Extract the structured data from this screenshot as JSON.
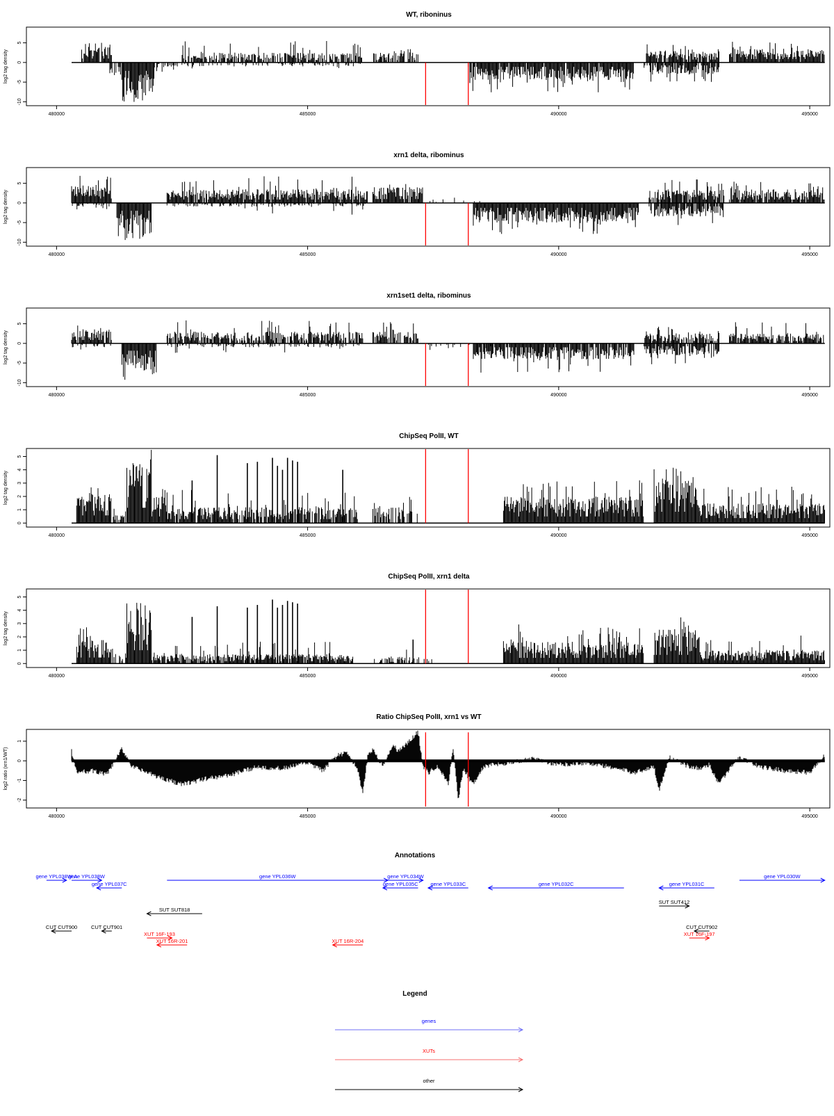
{
  "colors": {
    "gene": "#0000ff",
    "xut": "#ff0000",
    "other": "#000000",
    "marker": "#ff0000",
    "bars": "#000000",
    "frame": "#000000",
    "legend_gene_line": "#6f6ff5",
    "legend_xut_line": "#f56f6f"
  },
  "chart_data": [
    {
      "type": "bar",
      "title": "WT, riboninus",
      "ylabel": "log2 tag density",
      "xlim": [
        479400,
        495400
      ],
      "ylim": [
        -11,
        9
      ],
      "xticks": [
        480000,
        485000,
        490000,
        495000
      ],
      "yticks": [
        -10,
        -5,
        0,
        5
      ],
      "markers": [
        487350,
        488200
      ],
      "series_profile": [
        {
          "from": 480500,
          "to": 481100,
          "side": "pos",
          "level": 4.0,
          "peak": 5.0,
          "density": 0.9
        },
        {
          "from": 481000,
          "to": 481300,
          "side": "neg",
          "level": -3.0,
          "peak": -4.0,
          "density": 0.4
        },
        {
          "from": 481300,
          "to": 481950,
          "side": "neg",
          "level": -8.5,
          "peak": -10.5,
          "density": 1.0
        },
        {
          "from": 481950,
          "to": 482500,
          "side": "neg",
          "level": -1.5,
          "peak": -2.5,
          "density": 0.5
        },
        {
          "from": 482500,
          "to": 486100,
          "side": "pos",
          "level": 2.5,
          "peak": 5.5,
          "density": 0.7
        },
        {
          "from": 482500,
          "to": 486100,
          "side": "neg",
          "level": -1.0,
          "peak": -2.5,
          "density": 0.3
        },
        {
          "from": 486300,
          "to": 487200,
          "side": "pos",
          "level": 2.5,
          "peak": 3.5,
          "density": 0.7
        },
        {
          "from": 488200,
          "to": 491500,
          "side": "neg",
          "level": -4.5,
          "peak": -8.0,
          "density": 0.95
        },
        {
          "from": 491700,
          "to": 493200,
          "side": "pos",
          "level": 3.0,
          "peak": 5.0,
          "density": 0.8
        },
        {
          "from": 491700,
          "to": 493200,
          "side": "neg",
          "level": -3.0,
          "peak": -5.0,
          "density": 0.8
        },
        {
          "from": 493400,
          "to": 495300,
          "side": "pos",
          "level": 3.5,
          "peak": 5.5,
          "density": 0.95
        }
      ]
    },
    {
      "type": "bar",
      "title": "xrn1 delta, ribominus",
      "ylabel": "log2 tag density",
      "xlim": [
        479400,
        495400
      ],
      "ylim": [
        -11,
        9
      ],
      "xticks": [
        480000,
        485000,
        490000,
        495000
      ],
      "yticks": [
        -10,
        -5,
        0,
        5
      ],
      "markers": [
        487350,
        488200
      ],
      "series_profile": [
        {
          "from": 480300,
          "to": 481100,
          "side": "pos",
          "level": 4.5,
          "peak": 7.0,
          "density": 1.0
        },
        {
          "from": 480300,
          "to": 481100,
          "side": "neg",
          "level": -1.0,
          "peak": -2.0,
          "density": 0.4
        },
        {
          "from": 481200,
          "to": 481900,
          "side": "neg",
          "level": -8.0,
          "peak": -10.0,
          "density": 1.0
        },
        {
          "from": 482200,
          "to": 486200,
          "side": "pos",
          "level": 3.5,
          "peak": 7.0,
          "density": 0.95
        },
        {
          "from": 482200,
          "to": 486200,
          "side": "neg",
          "level": -1.0,
          "peak": -3.0,
          "density": 0.4
        },
        {
          "from": 486300,
          "to": 487300,
          "side": "pos",
          "level": 4.0,
          "peak": 5.5,
          "density": 0.95
        },
        {
          "from": 487300,
          "to": 488600,
          "side": "pos",
          "level": 1.0,
          "peak": 2.0,
          "density": 0.1
        },
        {
          "from": 488300,
          "to": 491600,
          "side": "neg",
          "level": -5.0,
          "peak": -8.0,
          "density": 1.0
        },
        {
          "from": 491800,
          "to": 493300,
          "side": "pos",
          "level": 3.5,
          "peak": 6.0,
          "density": 0.9
        },
        {
          "from": 491800,
          "to": 493300,
          "side": "neg",
          "level": -3.5,
          "peak": -6.0,
          "density": 0.8
        },
        {
          "from": 493400,
          "to": 495300,
          "side": "pos",
          "level": 3.5,
          "peak": 5.5,
          "density": 0.95
        }
      ]
    },
    {
      "type": "bar",
      "title": "xrn1set1 delta, ribominus",
      "ylabel": "log2 tag density",
      "xlim": [
        479400,
        495400
      ],
      "ylim": [
        -11,
        9
      ],
      "xticks": [
        480000,
        485000,
        490000,
        495000
      ],
      "yticks": [
        -10,
        -5,
        0,
        5
      ],
      "markers": [
        487350,
        488200
      ],
      "series_profile": [
        {
          "from": 480300,
          "to": 481100,
          "side": "pos",
          "level": 3.5,
          "peak": 6.0,
          "density": 0.9
        },
        {
          "from": 480300,
          "to": 481100,
          "side": "neg",
          "level": -1.0,
          "peak": -3.0,
          "density": 0.3
        },
        {
          "from": 481300,
          "to": 482000,
          "side": "neg",
          "level": -7.5,
          "peak": -9.5,
          "density": 1.0
        },
        {
          "from": 482200,
          "to": 486100,
          "side": "pos",
          "level": 3.0,
          "peak": 6.0,
          "density": 0.8
        },
        {
          "from": 482200,
          "to": 486100,
          "side": "neg",
          "level": -1.0,
          "peak": -2.5,
          "density": 0.3
        },
        {
          "from": 486300,
          "to": 487200,
          "side": "pos",
          "level": 3.0,
          "peak": 5.5,
          "density": 0.7
        },
        {
          "from": 487300,
          "to": 488700,
          "side": "neg",
          "level": -1.0,
          "peak": -2.5,
          "density": 0.1
        },
        {
          "from": 488300,
          "to": 491500,
          "side": "neg",
          "level": -4.0,
          "peak": -7.5,
          "density": 0.9
        },
        {
          "from": 491700,
          "to": 493200,
          "side": "pos",
          "level": 2.5,
          "peak": 4.5,
          "density": 0.8
        },
        {
          "from": 491700,
          "to": 493200,
          "side": "neg",
          "level": -3.0,
          "peak": -5.5,
          "density": 0.8
        },
        {
          "from": 493400,
          "to": 495300,
          "side": "pos",
          "level": 2.5,
          "peak": 5.5,
          "density": 0.8
        }
      ]
    },
    {
      "type": "bar",
      "title": "ChipSeq PolII, WT",
      "ylabel": "log2 tag density",
      "xlim": [
        479400,
        495400
      ],
      "ylim": [
        -0.3,
        5.6
      ],
      "xticks": [
        480000,
        485000,
        490000,
        495000
      ],
      "yticks": [
        0,
        1,
        2,
        3,
        4,
        5
      ],
      "markers": [
        487350,
        488200
      ],
      "series_profile": [
        {
          "from": 480400,
          "to": 481100,
          "side": "pos",
          "level": 2.3,
          "peak": 3.3,
          "density": 1.0
        },
        {
          "from": 481100,
          "to": 481400,
          "side": "pos",
          "level": 1.0,
          "peak": 1.5,
          "density": 0.6
        },
        {
          "from": 481400,
          "to": 481900,
          "side": "pos",
          "level": 4.6,
          "peak": 5.5,
          "density": 1.0
        },
        {
          "from": 481900,
          "to": 482200,
          "side": "pos",
          "level": 2.0,
          "peak": 3.0,
          "density": 0.9
        },
        {
          "from": 482200,
          "to": 486000,
          "side": "pos",
          "level": 1.2,
          "peak": 2.5,
          "density": 0.85
        },
        {
          "from": 486300,
          "to": 487200,
          "side": "pos",
          "level": 1.2,
          "peak": 2.0,
          "density": 0.6
        },
        {
          "from": 488900,
          "to": 491700,
          "side": "pos",
          "level": 2.0,
          "peak": 3.3,
          "density": 1.0
        },
        {
          "from": 491900,
          "to": 492800,
          "side": "pos",
          "level": 3.4,
          "peak": 4.2,
          "density": 1.0
        },
        {
          "from": 492800,
          "to": 495300,
          "side": "pos",
          "level": 1.5,
          "peak": 2.8,
          "density": 1.0
        }
      ],
      "spikes": [
        {
          "x": 483200,
          "y": 5.1
        },
        {
          "x": 483800,
          "y": 4.5
        },
        {
          "x": 484000,
          "y": 4.6
        },
        {
          "x": 484300,
          "y": 4.9
        },
        {
          "x": 484400,
          "y": 4.3
        },
        {
          "x": 484500,
          "y": 4.0
        },
        {
          "x": 484600,
          "y": 4.9
        },
        {
          "x": 484700,
          "y": 4.7
        },
        {
          "x": 484800,
          "y": 4.6
        },
        {
          "x": 482700,
          "y": 3.2
        },
        {
          "x": 485700,
          "y": 4.0
        }
      ]
    },
    {
      "type": "bar",
      "title": "ChipSeq PolII, xrn1 delta",
      "ylabel": "log2 tag density",
      "xlim": [
        479400,
        495400
      ],
      "ylim": [
        -0.3,
        5.6
      ],
      "xticks": [
        480000,
        485000,
        490000,
        495000
      ],
      "yticks": [
        0,
        1,
        2,
        3,
        4,
        5
      ],
      "markers": [
        487350,
        488200
      ],
      "series_profile": [
        {
          "from": 480400,
          "to": 481100,
          "side": "pos",
          "level": 1.8,
          "peak": 2.8,
          "density": 1.0
        },
        {
          "from": 481100,
          "to": 481400,
          "side": "pos",
          "level": 0.8,
          "peak": 1.2,
          "density": 0.4
        },
        {
          "from": 481400,
          "to": 481900,
          "side": "pos",
          "level": 4.0,
          "peak": 4.9,
          "density": 1.0
        },
        {
          "from": 481900,
          "to": 482200,
          "side": "pos",
          "level": 1.0,
          "peak": 1.8,
          "density": 0.8
        },
        {
          "from": 482200,
          "to": 485900,
          "side": "pos",
          "level": 0.7,
          "peak": 1.8,
          "density": 0.85
        },
        {
          "from": 486300,
          "to": 487500,
          "side": "pos",
          "level": 0.5,
          "peak": 1.2,
          "density": 0.5
        },
        {
          "from": 488900,
          "to": 491700,
          "side": "pos",
          "level": 1.7,
          "peak": 3.0,
          "density": 1.0
        },
        {
          "from": 491900,
          "to": 492800,
          "side": "pos",
          "level": 2.6,
          "peak": 3.5,
          "density": 1.0
        },
        {
          "from": 492800,
          "to": 495300,
          "side": "pos",
          "level": 1.0,
          "peak": 2.4,
          "density": 1.0
        }
      ],
      "spikes": [
        {
          "x": 483200,
          "y": 4.3
        },
        {
          "x": 483800,
          "y": 4.2
        },
        {
          "x": 484000,
          "y": 4.4
        },
        {
          "x": 484300,
          "y": 4.8
        },
        {
          "x": 484400,
          "y": 4.2
        },
        {
          "x": 484500,
          "y": 4.4
        },
        {
          "x": 484600,
          "y": 4.7
        },
        {
          "x": 484700,
          "y": 4.6
        },
        {
          "x": 484800,
          "y": 4.5
        },
        {
          "x": 482700,
          "y": 3.5
        },
        {
          "x": 487100,
          "y": 1.8
        }
      ]
    },
    {
      "type": "area",
      "title": "Ratio ChipSeq PolII, xrn1 vs WT",
      "ylabel": "log2 ratio (xrn1/WT)",
      "xlim": [
        479400,
        495400
      ],
      "ylim": [
        -2.4,
        1.6
      ],
      "xticks": [
        480000,
        485000,
        490000,
        495000
      ],
      "yticks": [
        -2,
        -1,
        0,
        1
      ],
      "markers": [
        487350,
        488200
      ],
      "x": [
        480300,
        480400,
        480700,
        481000,
        481100,
        481300,
        481400,
        481500,
        482000,
        482500,
        483000,
        483500,
        484000,
        484500,
        485000,
        485300,
        485600,
        485800,
        486000,
        486100,
        486200,
        486300,
        486500,
        486700,
        486800,
        487000,
        487200,
        487300,
        487400,
        487600,
        487800,
        487900,
        488000,
        488100,
        488300,
        488500,
        488700,
        489000,
        489500,
        490000,
        490500,
        491000,
        491500,
        491900,
        492000,
        492200,
        492500,
        492800,
        493000,
        493200,
        493400,
        493600,
        494000,
        494500,
        495000,
        495300
      ],
      "y": [
        0.5,
        -0.6,
        -0.5,
        -0.7,
        -0.3,
        0.6,
        0.2,
        -0.3,
        -0.8,
        -1.2,
        -0.9,
        -0.7,
        -0.3,
        -0.4,
        -0.1,
        -0.5,
        0.3,
        0.4,
        -0.5,
        -1.7,
        0.3,
        0.6,
        -0.3,
        0.8,
        0.5,
        0.9,
        1.5,
        -0.3,
        -0.6,
        -0.3,
        -1.2,
        0.7,
        -2.0,
        -0.4,
        -1.2,
        -0.3,
        -0.2,
        -0.1,
        0.1,
        -0.2,
        -0.1,
        -0.3,
        -0.6,
        -0.3,
        -1.5,
        0.2,
        -0.2,
        -0.4,
        -0.2,
        -1.2,
        -0.4,
        0.2,
        -0.3,
        -0.5,
        -0.6,
        0.3
      ]
    }
  ],
  "annotations": {
    "title": "Annotations",
    "xlim": [
      479400,
      495400
    ],
    "features": [
      {
        "label": "gene YPL038W-A",
        "kind": "gene",
        "start": 479800,
        "end": 480200,
        "strand": "+",
        "row": 0
      },
      {
        "label": "gene YPL038W",
        "kind": "gene",
        "start": 480300,
        "end": 480900,
        "strand": "+",
        "row": 0
      },
      {
        "label": "gene YPL037C",
        "kind": "gene",
        "start": 480800,
        "end": 481300,
        "strand": "-",
        "row": 1
      },
      {
        "label": "gene YPL036W",
        "kind": "gene",
        "start": 482200,
        "end": 486600,
        "strand": "+",
        "row": 0
      },
      {
        "label": "gene YPL034W",
        "kind": "gene",
        "start": 486600,
        "end": 487300,
        "strand": "+",
        "row": 0
      },
      {
        "label": "gene YPL035C",
        "kind": "gene",
        "start": 486500,
        "end": 487200,
        "strand": "-",
        "row": 1
      },
      {
        "label": "gene YPL033C",
        "kind": "gene",
        "start": 487400,
        "end": 488200,
        "strand": "-",
        "row": 1
      },
      {
        "label": "gene YPL032C",
        "kind": "gene",
        "start": 488600,
        "end": 491300,
        "strand": "-",
        "row": 1
      },
      {
        "label": "gene YPL031C",
        "kind": "gene",
        "start": 492000,
        "end": 493100,
        "strand": "-",
        "row": 1
      },
      {
        "label": "gene YPL030W",
        "kind": "gene",
        "start": 493600,
        "end": 495300,
        "strand": "+",
        "row": 0
      },
      {
        "label": "SUT SUT818",
        "kind": "other",
        "start": 481800,
        "end": 482900,
        "strand": "-",
        "row": 3
      },
      {
        "label": "SUT SUT412",
        "kind": "other",
        "start": 492000,
        "end": 492600,
        "strand": "+",
        "row": 2
      },
      {
        "label": "CUT CUT900",
        "kind": "other",
        "start": 479900,
        "end": 480300,
        "strand": "-",
        "row": 4
      },
      {
        "label": "CUT CUT901",
        "kind": "other",
        "start": 480900,
        "end": 481100,
        "strand": "-",
        "row": 4
      },
      {
        "label": "CUT CUT902",
        "kind": "other",
        "start": 492700,
        "end": 493000,
        "strand": "-",
        "row": 4
      },
      {
        "label": "XUT 16F-193",
        "kind": "xut",
        "start": 481800,
        "end": 482300,
        "strand": "+",
        "row": 5
      },
      {
        "label": "XUT 16R-201",
        "kind": "xut",
        "start": 482000,
        "end": 482600,
        "strand": "-",
        "row": 6
      },
      {
        "label": "XUT 16R-204",
        "kind": "xut",
        "start": 485500,
        "end": 486100,
        "strand": "-",
        "row": 6
      },
      {
        "label": "XUT 16F-197",
        "kind": "xut",
        "start": 492600,
        "end": 493000,
        "strand": "+",
        "row": 5
      }
    ]
  },
  "legend": {
    "title": "Legend",
    "items": [
      {
        "label": "genes",
        "kind": "gene"
      },
      {
        "label": "XUTs",
        "kind": "xut"
      },
      {
        "label": "other",
        "kind": "other"
      }
    ]
  }
}
